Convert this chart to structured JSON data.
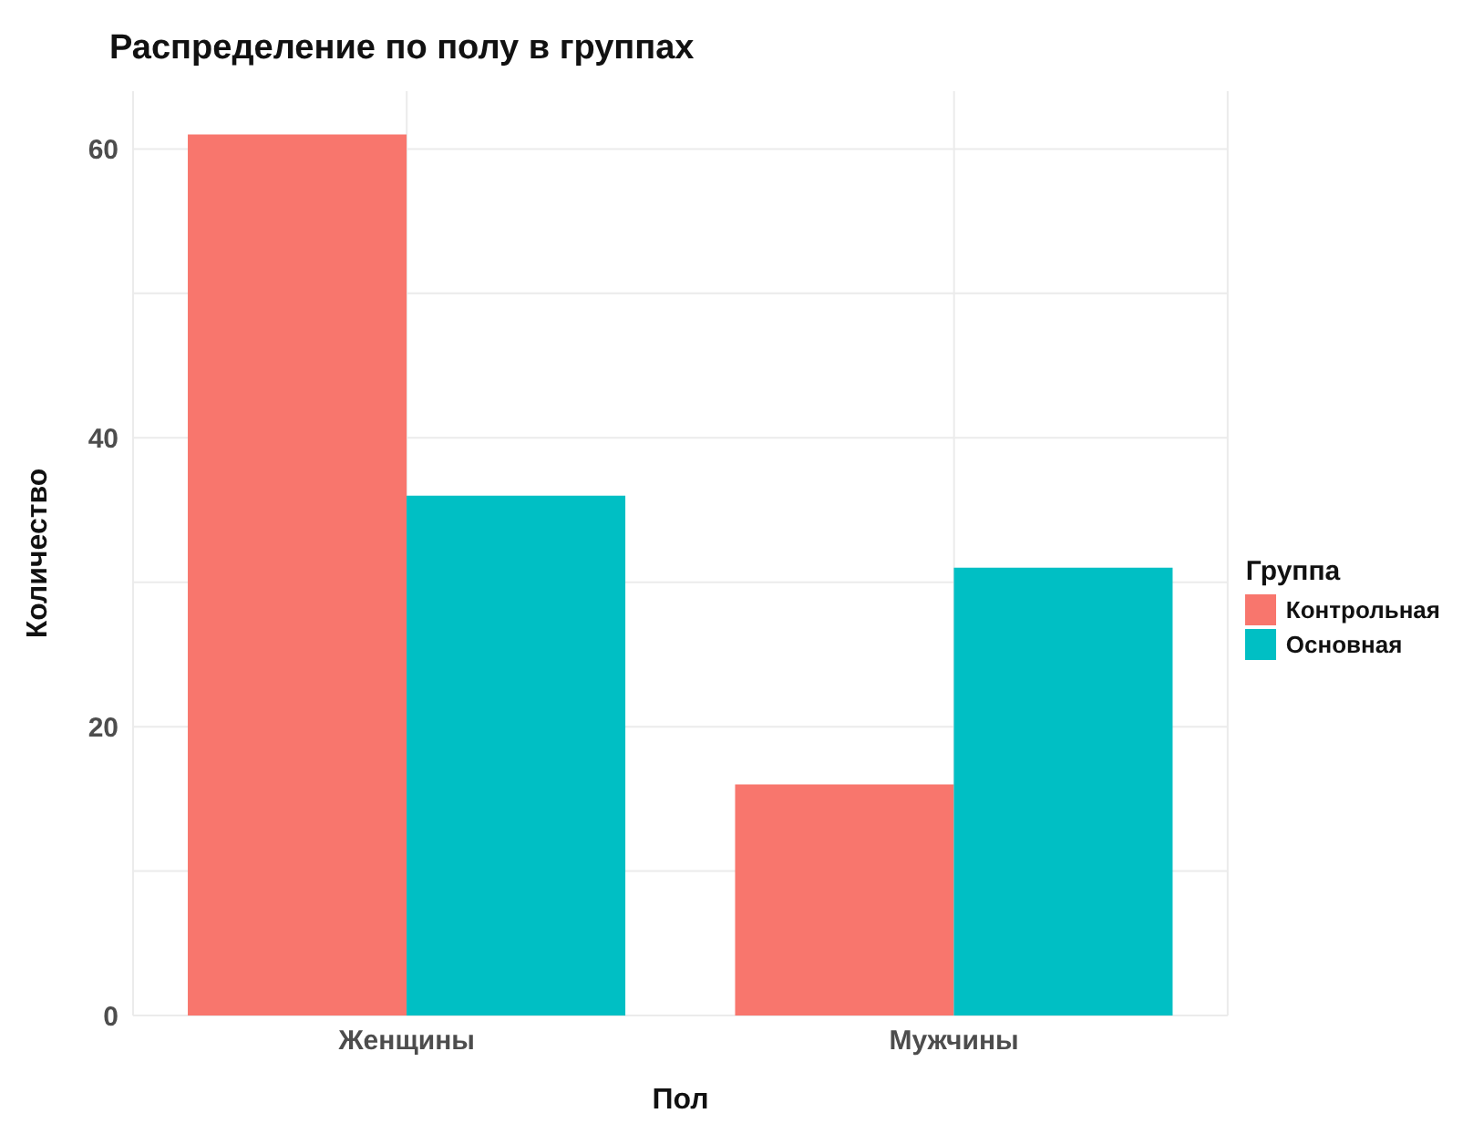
{
  "chart_data": {
    "type": "bar",
    "title": "Распределение по полу в группах",
    "xlabel": "Пол",
    "ylabel": "Количество",
    "legend_title": "Группа",
    "categories": [
      "Женщины",
      "Мужчины"
    ],
    "series": [
      {
        "name": "Контрольная",
        "color": "#f8766d",
        "values": [
          61,
          16
        ]
      },
      {
        "name": "Основная",
        "color": "#00bfc4",
        "values": [
          36,
          31
        ]
      }
    ],
    "ylim": [
      0,
      64
    ],
    "yticks": [
      0,
      {
        "value": 10,
        "label": null
      },
      20,
      {
        "value": 30,
        "label": null
      },
      40,
      {
        "value": 50,
        "label": null
      },
      60
    ],
    "grid": true,
    "legend": "right"
  }
}
